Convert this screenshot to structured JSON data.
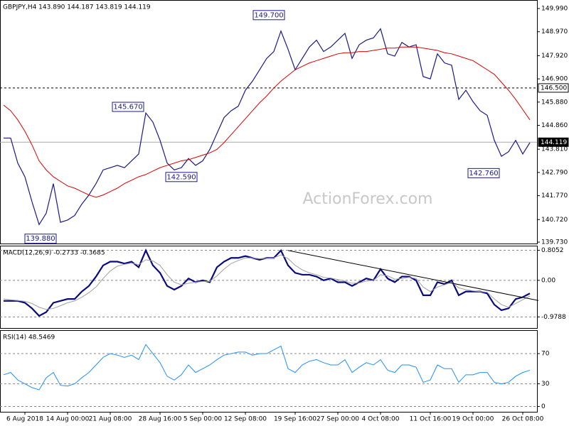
{
  "chart_data": [
    {
      "type": "line",
      "title": "GBPJPY,H4  143.890 144.187 143.819 144.119",
      "watermark": "ActionForex.com",
      "ylim": [
        139.668,
        150.364
      ],
      "yticks": [
        {
          "value": 149.99,
          "label": "149.990"
        },
        {
          "value": 148.97,
          "label": "148.970"
        },
        {
          "value": 147.92,
          "label": "147.920"
        },
        {
          "value": 146.9,
          "label": "146.900"
        },
        {
          "value": 145.88,
          "label": "145.880"
        },
        {
          "value": 144.86,
          "label": "144.860"
        },
        {
          "value": 143.81,
          "label": "143.810"
        },
        {
          "value": 142.79,
          "label": "142.790"
        },
        {
          "value": 141.77,
          "label": "141.770"
        },
        {
          "value": 140.72,
          "label": "140.720"
        },
        {
          "value": 139.73,
          "label": "139.730"
        }
      ],
      "series": [
        {
          "color": "#1a1a8c",
          "values": [
            144.3,
            144.3,
            143.2,
            142.6,
            141.5,
            140.5,
            141.0,
            142.3,
            140.6,
            140.7,
            140.9,
            141.4,
            141.8,
            142.3,
            142.9,
            143.0,
            143.1,
            143.0,
            143.3,
            143.6,
            145.4,
            145.0,
            144.2,
            143.2,
            142.9,
            143.0,
            143.4,
            143.1,
            143.3,
            143.8,
            144.5,
            145.2,
            145.5,
            145.7,
            146.4,
            146.8,
            147.3,
            147.8,
            148.1,
            149.0,
            148.2,
            147.3,
            147.8,
            148.3,
            148.6,
            148.1,
            148.3,
            148.6,
            148.9,
            147.8,
            148.4,
            148.6,
            148.7,
            149.1,
            148.0,
            147.9,
            148.5,
            148.3,
            148.4,
            147.0,
            146.9,
            148.0,
            147.6,
            147.5,
            146.0,
            146.4,
            145.9,
            145.5,
            145.3,
            144.2,
            143.5,
            143.7,
            144.2,
            143.6,
            144.1
          ]
        },
        {
          "color": "#e00000",
          "values": [
            145.75,
            145.5,
            145.1,
            144.6,
            144.0,
            143.3,
            142.9,
            142.6,
            142.4,
            142.2,
            142.1,
            141.95,
            141.8,
            141.7,
            141.8,
            141.95,
            142.1,
            142.3,
            142.45,
            142.6,
            142.7,
            142.85,
            143.0,
            143.1,
            143.2,
            143.3,
            143.35,
            143.45,
            143.55,
            143.65,
            143.8,
            144.1,
            144.45,
            144.8,
            145.15,
            145.5,
            145.85,
            146.15,
            146.5,
            146.8,
            147.05,
            147.3,
            147.45,
            147.6,
            147.7,
            147.8,
            147.9,
            148.0,
            148.05,
            148.05,
            148.1,
            148.1,
            148.15,
            148.2,
            148.25,
            148.25,
            148.3,
            148.3,
            148.3,
            148.25,
            148.2,
            148.15,
            148.05,
            148.0,
            147.9,
            147.8,
            147.7,
            147.5,
            147.3,
            147.1,
            146.75,
            146.4,
            146.0,
            145.55,
            145.1
          ]
        }
      ],
      "annotations": [
        {
          "value": 149.7,
          "label": "149.700"
        },
        {
          "value": 145.67,
          "label": "145.670"
        },
        {
          "value": 142.59,
          "label": "142.590"
        },
        {
          "value": 142.76,
          "label": "142.760"
        },
        {
          "value": 139.88,
          "label": "139.880"
        }
      ],
      "hlines": [
        {
          "value": 146.5,
          "label": "146.500",
          "style": "dashed"
        },
        {
          "value": 144.119,
          "label": "144.119",
          "style": "current"
        }
      ]
    },
    {
      "type": "line",
      "title": "MACD(12,26,9) -0.2733 -0.3685",
      "ylim": [
        -1.276,
        0.928
      ],
      "yticks": [
        0.8052,
        {
          "value": 0,
          "label": "0.00"
        },
        -0.9788
      ],
      "series": [
        {
          "color": "#0a0a80",
          "values": [
            -0.55,
            -0.55,
            -0.55,
            -0.6,
            -0.75,
            -0.95,
            -0.85,
            -0.6,
            -0.55,
            -0.5,
            -0.5,
            -0.3,
            -0.15,
            0.1,
            0.4,
            0.5,
            0.5,
            0.45,
            0.5,
            0.35,
            0.8,
            0.4,
            0.2,
            -0.15,
            -0.25,
            -0.15,
            0.05,
            -0.05,
            0,
            -0.05,
            0.35,
            0.5,
            0.6,
            0.6,
            0.65,
            0.6,
            0.55,
            0.6,
            0.6,
            0.8,
            0.4,
            0.2,
            0.15,
            0.15,
            0.1,
            0,
            0.05,
            -0.05,
            -0.05,
            -0.15,
            -0.05,
            0.05,
            0,
            0.3,
            0.05,
            -0.05,
            0.1,
            0.1,
            0,
            -0.4,
            -0.4,
            -0.05,
            -0.1,
            0,
            -0.4,
            -0.3,
            -0.3,
            -0.3,
            -0.35,
            -0.65,
            -0.8,
            -0.75,
            -0.5,
            -0.45,
            -0.35
          ]
        },
        {
          "color": "#a0a0a0",
          "values": [
            -0.5,
            -0.52,
            -0.54,
            -0.56,
            -0.62,
            -0.72,
            -0.78,
            -0.75,
            -0.68,
            -0.6,
            -0.55,
            -0.45,
            -0.33,
            -0.18,
            0.05,
            0.25,
            0.38,
            0.43,
            0.46,
            0.42,
            0.55,
            0.52,
            0.4,
            0.15,
            -0.05,
            -0.12,
            -0.08,
            -0.05,
            -0.03,
            -0.03,
            0.12,
            0.3,
            0.45,
            0.53,
            0.6,
            0.6,
            0.58,
            0.59,
            0.6,
            0.68,
            0.58,
            0.4,
            0.28,
            0.2,
            0.15,
            0.08,
            0.06,
            0.02,
            -0.02,
            -0.08,
            -0.07,
            -0.02,
            0,
            0.15,
            0.12,
            0.03,
            0.05,
            0.08,
            0.05,
            -0.18,
            -0.3,
            -0.18,
            -0.12,
            -0.05,
            -0.2,
            -0.25,
            -0.28,
            -0.3,
            -0.32,
            -0.5,
            -0.65,
            -0.72,
            -0.62,
            -0.52,
            -0.42
          ]
        }
      ],
      "trendline": [
        0.8,
        -0.54
      ]
    },
    {
      "type": "line",
      "title": "RSI(14) 48.5469",
      "ylim": [
        -7.1,
        101.1
      ],
      "yticks": [
        70,
        30,
        0
      ],
      "categories": [
        null,
        null,
        null,
        "6 Aug 2018",
        null,
        null,
        null,
        null,
        null,
        "14 Aug 00:00",
        null,
        null,
        null,
        null,
        null,
        "21 Aug 08:00",
        null,
        null,
        null,
        null,
        null,
        null,
        "28 Aug 16:00",
        null,
        null,
        null,
        null,
        null,
        "5 Sep 00:00",
        null,
        null,
        null,
        null,
        null,
        "12 Sep 08:00",
        null,
        null,
        null,
        null,
        null,
        null,
        "19 Sep 16:00",
        null,
        null,
        null,
        null,
        null,
        "27 Sep 00:00",
        null,
        null,
        null,
        null,
        null,
        "4 Oct 08:00",
        null,
        null,
        null,
        null,
        null,
        null,
        "11 Oct 16:00",
        null,
        null,
        null,
        null,
        null,
        "19 Oct 00:00",
        null,
        null,
        null,
        null,
        null,
        null,
        "26 Oct 08:00",
        null
      ],
      "series": [
        {
          "color": "#1e90ff",
          "values": [
            42,
            45,
            35,
            30,
            25,
            22,
            38,
            45,
            28,
            27,
            30,
            38,
            45,
            55,
            65,
            70,
            68,
            65,
            68,
            62,
            82,
            70,
            58,
            40,
            35,
            42,
            55,
            45,
            50,
            55,
            62,
            68,
            70,
            72,
            72,
            68,
            70,
            70,
            75,
            80,
            50,
            45,
            55,
            60,
            62,
            58,
            55,
            55,
            62,
            45,
            52,
            58,
            55,
            62,
            48,
            45,
            55,
            55,
            52,
            32,
            35,
            55,
            50,
            50,
            32,
            42,
            42,
            45,
            45,
            32,
            30,
            32,
            40,
            45,
            48
          ]
        }
      ]
    }
  ]
}
